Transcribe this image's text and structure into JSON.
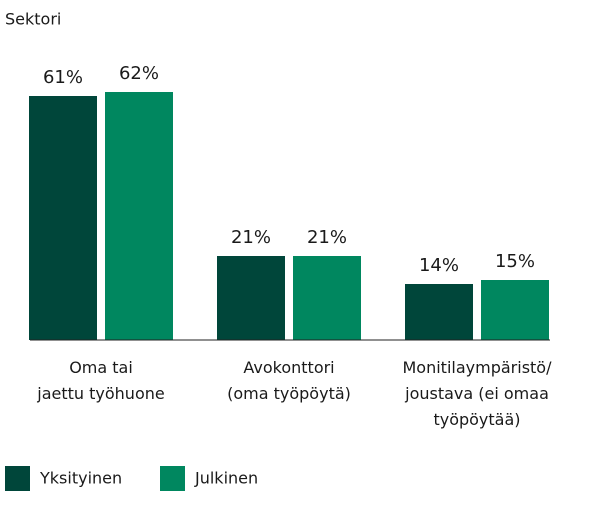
{
  "chart_data": {
    "type": "bar",
    "title": "Sektori",
    "categories": [
      "Oma tai\njaettu työhuone",
      "Avokonttori\n(oma työpöytä)",
      "Monitilaympäristö/\njoustava (ei omaa\ntyöpöytää)"
    ],
    "series": [
      {
        "name": "Yksityinen",
        "color": "#00463a",
        "values": [
          61,
          21,
          14
        ],
        "value_labels": [
          "61%",
          "21%",
          "14%"
        ]
      },
      {
        "name": "Julkinen",
        "color": "#00875f",
        "values": [
          62,
          21,
          15
        ],
        "value_labels": [
          "62%",
          "21%",
          "15%"
        ]
      }
    ],
    "ylim": [
      0,
      70
    ]
  }
}
